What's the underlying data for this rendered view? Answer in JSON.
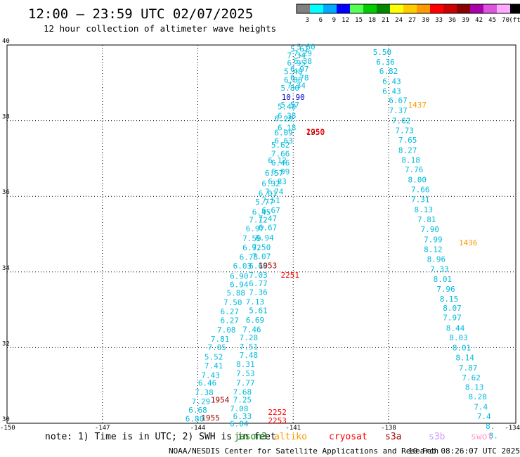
{
  "header": {
    "title": "12:00 — 23:59 UTC 02/07/2025",
    "subtitle": "12 hour collection of altimeter wave heights"
  },
  "legend": {
    "unit_label": "(ft)",
    "bins": [
      {
        "label": "3",
        "color": "#808080"
      },
      {
        "label": "6",
        "color": "#00ffff"
      },
      {
        "label": "9",
        "color": "#00aaff"
      },
      {
        "label": "12",
        "color": "#0000ff"
      },
      {
        "label": "15",
        "color": "#55ff55"
      },
      {
        "label": "18",
        "color": "#00cc00"
      },
      {
        "label": "21",
        "color": "#008800"
      },
      {
        "label": "24",
        "color": "#ffff00"
      },
      {
        "label": "27",
        "color": "#ffcc00"
      },
      {
        "label": "30",
        "color": "#ff9900"
      },
      {
        "label": "33",
        "color": "#ff0000"
      },
      {
        "label": "36",
        "color": "#cc0000"
      },
      {
        "label": "39",
        "color": "#880000"
      },
      {
        "label": "42",
        "color": "#aa00aa"
      },
      {
        "label": "45",
        "color": "#dd55dd"
      },
      {
        "label": "70",
        "color": "#ffaaff"
      },
      {
        "label": "",
        "color": "#000000"
      }
    ]
  },
  "footer": {
    "note": "note:  1) Time is in UTC; 2) SWH is in feet",
    "satellites": [
      {
        "name": "jason3",
        "color": "#008800"
      },
      {
        "name": "altiko",
        "color": "#ff9900"
      },
      {
        "name": "cryosat",
        "color": "#ff0000"
      },
      {
        "name": "s3a",
        "color": "#aa0000"
      },
      {
        "name": "s3b",
        "color": "#cc99ff"
      },
      {
        "name": "swot",
        "color": "#ff99cc"
      }
    ],
    "credit": "NOAA/NESDIS Center for Satellite Applications and Research",
    "timestamp": "10 Feb 08:26:07 UTC 2025"
  },
  "chart_data": {
    "type": "scatter",
    "xlim": [
      -150,
      -134
    ],
    "ylim": [
      30,
      40
    ],
    "x_ticks": [
      -150,
      -147,
      -144,
      -141,
      -138,
      -134
    ],
    "y_ticks": [
      30,
      32,
      34,
      36,
      38,
      40
    ],
    "grid_x": [
      -147,
      -144,
      -141,
      -138
    ],
    "grid_y": [
      32,
      34,
      36,
      38
    ],
    "colors": {
      "low": "#00bbdd",
      "mid": "#0000cc",
      "altiko": "#ff9900",
      "s3a": "#990000",
      "cryosat": "#ff0000"
    },
    "series": [
      {
        "color_key": "low",
        "points": [
          [
            -140.6,
            39.88,
            "5.80"
          ],
          [
            -140.8,
            39.82,
            "5.61"
          ],
          [
            -140.7,
            39.71,
            "7.29"
          ],
          [
            -140.9,
            39.66,
            "7.34"
          ],
          [
            -140.7,
            39.5,
            "6.38"
          ],
          [
            -140.9,
            39.45,
            "6.95"
          ],
          [
            -140.8,
            39.29,
            "6.97"
          ],
          [
            -141.0,
            39.23,
            "5.48"
          ],
          [
            -140.8,
            39.06,
            "6.78"
          ],
          [
            -141.0,
            39.01,
            "6.86"
          ],
          [
            -140.9,
            38.86,
            "7.34"
          ],
          [
            -141.1,
            38.79,
            "5.80"
          ],
          [
            -141.1,
            38.35,
            "5.57"
          ],
          [
            -141.2,
            38.3,
            "5.40"
          ],
          [
            -141.2,
            38.06,
            "6.38"
          ],
          [
            -141.3,
            37.98,
            "6.20"
          ],
          [
            -141.2,
            37.74,
            "6.18"
          ],
          [
            -141.3,
            37.61,
            "6.09"
          ],
          [
            -141.3,
            37.4,
            "6.63"
          ],
          [
            -141.4,
            37.29,
            "5.62"
          ],
          [
            -141.4,
            37.05,
            "7.66"
          ],
          [
            -141.5,
            36.88,
            "6.12"
          ],
          [
            -141.4,
            36.81,
            "6.46"
          ],
          [
            -141.4,
            36.58,
            "6.99"
          ],
          [
            -141.6,
            36.54,
            "6.57"
          ],
          [
            -141.5,
            36.32,
            "6.83"
          ],
          [
            -141.7,
            36.26,
            "6.32"
          ],
          [
            -141.6,
            36.05,
            "7.74"
          ],
          [
            -141.8,
            36.0,
            "6.01"
          ],
          [
            -141.7,
            35.82,
            "7.51"
          ],
          [
            -141.9,
            35.78,
            "5.77"
          ],
          [
            -141.7,
            35.56,
            "6.67"
          ],
          [
            -142.0,
            35.51,
            "6.45"
          ],
          [
            -141.8,
            35.34,
            "7.47"
          ],
          [
            -142.1,
            35.31,
            "7.12"
          ],
          [
            -141.8,
            35.1,
            "6.67"
          ],
          [
            -142.2,
            35.07,
            "6.97"
          ],
          [
            -141.9,
            34.83,
            "6.94"
          ],
          [
            -142.3,
            34.81,
            "7.59"
          ],
          [
            -142.0,
            34.58,
            "7.50"
          ],
          [
            -142.3,
            34.57,
            "6.92"
          ],
          [
            -142.0,
            34.34,
            "7.07"
          ],
          [
            -142.4,
            34.32,
            "6.78"
          ],
          [
            -142.6,
            34.09,
            "6.03"
          ],
          [
            -142.1,
            34.09,
            "6.60"
          ],
          [
            -142.1,
            33.85,
            "7.03"
          ],
          [
            -142.7,
            33.82,
            "6.90"
          ],
          [
            -142.1,
            33.62,
            "6.77"
          ],
          [
            -142.7,
            33.6,
            "6.94"
          ],
          [
            -142.1,
            33.39,
            "7.36"
          ],
          [
            -142.8,
            33.37,
            "5.88"
          ],
          [
            -142.2,
            33.14,
            "7.13"
          ],
          [
            -142.9,
            33.12,
            "7.50"
          ],
          [
            -142.1,
            32.91,
            "5.61"
          ],
          [
            -143.0,
            32.88,
            "6.27"
          ],
          [
            -142.2,
            32.66,
            "6.69"
          ],
          [
            -143.0,
            32.65,
            "6.27"
          ],
          [
            -142.3,
            32.41,
            "7.46"
          ],
          [
            -143.1,
            32.4,
            "7.08"
          ],
          [
            -142.4,
            32.19,
            "7.28"
          ],
          [
            -143.3,
            32.16,
            "7.81"
          ],
          [
            -142.4,
            31.95,
            "7.51"
          ],
          [
            -143.4,
            31.93,
            "7.05"
          ],
          [
            -142.4,
            31.73,
            "7.48"
          ],
          [
            -143.5,
            31.68,
            "5.52"
          ],
          [
            -142.5,
            31.49,
            "8.31"
          ],
          [
            -143.5,
            31.45,
            "7.41"
          ],
          [
            -142.5,
            31.25,
            "7.53"
          ],
          [
            -143.6,
            31.2,
            "7.43"
          ],
          [
            -142.5,
            30.99,
            "7.77"
          ],
          [
            -143.7,
            30.99,
            "6.46"
          ],
          [
            -142.6,
            30.75,
            "7.68"
          ],
          [
            -143.8,
            30.74,
            "7.38"
          ],
          [
            -142.6,
            30.55,
            "7.25"
          ],
          [
            -143.9,
            30.5,
            "7.29"
          ],
          [
            -142.7,
            30.32,
            "7.08"
          ],
          [
            -144.0,
            30.28,
            "6.68"
          ],
          [
            -142.6,
            30.11,
            "6.33"
          ],
          [
            -144.1,
            30.05,
            "6.80"
          ],
          [
            -142.7,
            29.92,
            "6.04"
          ],
          [
            -138.2,
            39.74,
            "5.50"
          ],
          [
            -138.1,
            39.48,
            "6.36"
          ],
          [
            -138.0,
            39.24,
            "6.82"
          ],
          [
            -137.9,
            38.97,
            "6.43"
          ],
          [
            -137.9,
            38.71,
            "6.43"
          ],
          [
            -137.7,
            38.47,
            "6.67"
          ],
          [
            -137.7,
            38.2,
            "7.37"
          ],
          [
            -137.6,
            37.93,
            "7.62"
          ],
          [
            -137.5,
            37.67,
            "7.73"
          ],
          [
            -137.4,
            37.42,
            "7.65"
          ],
          [
            -137.4,
            37.15,
            "8.27"
          ],
          [
            -137.3,
            36.89,
            "8.18"
          ],
          [
            -137.2,
            36.64,
            "7.76"
          ],
          [
            -137.1,
            36.37,
            "8.00"
          ],
          [
            -137.0,
            36.11,
            "7.66"
          ],
          [
            -137.0,
            35.85,
            "7.31"
          ],
          [
            -136.9,
            35.58,
            "8.13"
          ],
          [
            -136.8,
            35.32,
            "7.81"
          ],
          [
            -136.7,
            35.06,
            "7.90"
          ],
          [
            -136.6,
            34.79,
            "7.99"
          ],
          [
            -136.6,
            34.53,
            "8.12"
          ],
          [
            -136.5,
            34.27,
            "8.96"
          ],
          [
            -136.4,
            34.01,
            "7.33"
          ],
          [
            -136.3,
            33.74,
            "8.01"
          ],
          [
            -136.2,
            33.48,
            "7.96"
          ],
          [
            -136.1,
            33.22,
            "8.15"
          ],
          [
            -136.0,
            32.97,
            "8.07"
          ],
          [
            -136.0,
            32.72,
            "7.97"
          ],
          [
            -135.9,
            32.44,
            "8.44"
          ],
          [
            -135.8,
            32.19,
            "8.03"
          ],
          [
            -135.7,
            31.92,
            "8.01"
          ],
          [
            -135.6,
            31.66,
            "8.14"
          ],
          [
            -135.5,
            31.39,
            "7.87"
          ],
          [
            -135.4,
            31.13,
            "7.62"
          ],
          [
            -135.3,
            30.88,
            "8.13"
          ],
          [
            -135.2,
            30.63,
            "8.28"
          ],
          [
            -135.1,
            30.36,
            "7.4"
          ],
          [
            -135.0,
            30.11,
            "7.4"
          ],
          [
            -134.8,
            29.85,
            "8."
          ],
          [
            -134.7,
            29.6,
            "8."
          ]
        ]
      },
      {
        "color_key": "mid",
        "points": [
          [
            -141.0,
            38.55,
            "10.90"
          ]
        ]
      },
      {
        "color_key": "altiko",
        "points": [
          [
            -137.1,
            38.35,
            "1437"
          ],
          [
            -135.5,
            34.7,
            "1436"
          ]
        ]
      },
      {
        "color_key": "s3a",
        "points": [
          [
            -140.3,
            37.62,
            "1950"
          ],
          [
            -141.8,
            34.1,
            "1953"
          ],
          [
            -143.3,
            30.55,
            "1954"
          ],
          [
            -143.6,
            30.07,
            "1955"
          ]
        ]
      },
      {
        "color_key": "cryosat",
        "points": [
          [
            -140.3,
            37.64,
            "2250"
          ],
          [
            -141.1,
            33.85,
            "2251"
          ],
          [
            -141.5,
            30.22,
            "2252"
          ],
          [
            -141.5,
            30.0,
            "2253"
          ]
        ]
      }
    ]
  }
}
